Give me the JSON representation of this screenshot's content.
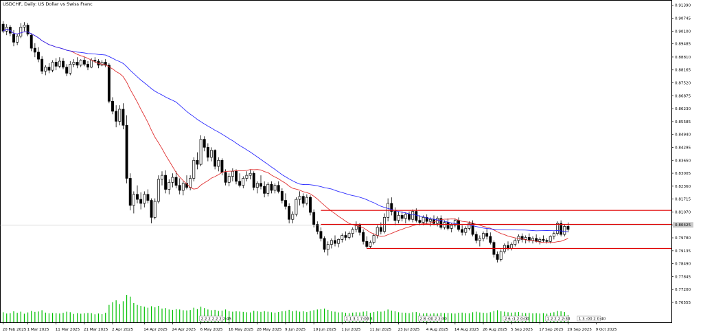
{
  "chart_data": {
    "type": "candlestick",
    "title": "USDCHF, Daily:  US Dollar vs Swiss Franc",
    "ylim": [
      0.758,
      0.9145
    ],
    "y_ticks": [
      "0.91390",
      "0.90745",
      "0.90100",
      "0.89485",
      "0.88810",
      "0.88165",
      "0.87520",
      "0.86875",
      "0.86230",
      "0.85585",
      "0.84940",
      "0.84295",
      "0.83650",
      "0.83005",
      "0.82360",
      "0.81715",
      "0.81070",
      "0.80425",
      "0.79780",
      "0.79135",
      "0.78490",
      "0.77845",
      "0.77200",
      "0.76555"
    ],
    "current_price_label": "0.80425",
    "x_ticks": [
      {
        "i": 0,
        "label": "20 Feb 2025"
      },
      {
        "i": 7,
        "label": "1 Mar 2025"
      },
      {
        "i": 15,
        "label": "11 Mar 2025"
      },
      {
        "i": 23,
        "label": "21 Mar 2025"
      },
      {
        "i": 31,
        "label": "2 Apr 2025"
      },
      {
        "i": 40,
        "label": "14 Apr 2025"
      },
      {
        "i": 48,
        "label": "24 Apr 2025"
      },
      {
        "i": 56,
        "label": "6 May 2025"
      },
      {
        "i": 64,
        "label": "16 May 2025"
      },
      {
        "i": 72,
        "label": "28 May 2025"
      },
      {
        "i": 80,
        "label": "9 Jun 2025"
      },
      {
        "i": 88,
        "label": "19 Jun 2025"
      },
      {
        "i": 96,
        "label": "1 Jul 2025"
      },
      {
        "i": 104,
        "label": "11 Jul 2025"
      },
      {
        "i": 112,
        "label": "23 Jul 2025"
      },
      {
        "i": 120,
        "label": "4 Aug 2025"
      },
      {
        "i": 128,
        "label": "14 Aug 2025"
      },
      {
        "i": 136,
        "label": "26 Aug 2025"
      },
      {
        "i": 144,
        "label": "5 Sep 2025"
      },
      {
        "i": 152,
        "label": "17 Sep 2025"
      },
      {
        "i": 160,
        "label": "29 Sep 2025"
      },
      {
        "i": 168,
        "label": "9 Oct 2025"
      }
    ],
    "horizontal_lines": [
      {
        "price": 0.8115,
        "from_i": 90,
        "color": "#e00000"
      },
      {
        "price": 0.8045,
        "from_i": 90,
        "color": "#e00000"
      },
      {
        "price": 0.7925,
        "from_i": 103,
        "color": "#e00000"
      }
    ],
    "ma_fast_color": "#e03030",
    "ma_slow_color": "#2a2aff",
    "volume_color": "#00c000",
    "session_markers": [
      {
        "i": 56,
        "label": "2 2 2 2 2 2 2:45"
      },
      {
        "i": 97,
        "label": "1 1 3 1 7:00 3"
      },
      {
        "i": 118,
        "label": "2 8 :00 2 2:30"
      },
      {
        "i": 142,
        "label": "2 6 :1 2 0:00"
      },
      {
        "i": 154,
        "label": "1 2 2 2 2:30"
      },
      {
        "i": 163,
        "label": "1 3 :00 2 0:40"
      }
    ],
    "candles": [
      [
        0.9045,
        0.906,
        0.9,
        0.901,
        55
      ],
      [
        0.901,
        0.9045,
        0.899,
        0.903,
        48
      ],
      [
        0.903,
        0.904,
        0.8985,
        0.9,
        50
      ],
      [
        0.8995,
        0.9015,
        0.8935,
        0.8955,
        60
      ],
      [
        0.8955,
        0.8995,
        0.894,
        0.8985,
        52
      ],
      [
        0.8985,
        0.905,
        0.8975,
        0.903,
        58
      ],
      [
        0.903,
        0.9055,
        0.901,
        0.904,
        47
      ],
      [
        0.904,
        0.905,
        0.8985,
        0.8995,
        54
      ],
      [
        0.899,
        0.9,
        0.891,
        0.8925,
        62
      ],
      [
        0.8925,
        0.895,
        0.888,
        0.8905,
        57
      ],
      [
        0.8905,
        0.893,
        0.8855,
        0.887,
        59
      ],
      [
        0.887,
        0.8885,
        0.8795,
        0.881,
        66
      ],
      [
        0.881,
        0.884,
        0.879,
        0.883,
        53
      ],
      [
        0.883,
        0.885,
        0.88,
        0.8815,
        49
      ],
      [
        0.8815,
        0.8865,
        0.8805,
        0.8855,
        51
      ],
      [
        0.8855,
        0.8875,
        0.8815,
        0.8835,
        50
      ],
      [
        0.8835,
        0.888,
        0.8825,
        0.886,
        48
      ],
      [
        0.886,
        0.8875,
        0.882,
        0.883,
        52
      ],
      [
        0.883,
        0.8845,
        0.8785,
        0.88,
        58
      ],
      [
        0.88,
        0.886,
        0.879,
        0.8845,
        55
      ],
      [
        0.8845,
        0.887,
        0.883,
        0.8855,
        46
      ],
      [
        0.8855,
        0.888,
        0.8825,
        0.884,
        50
      ],
      [
        0.884,
        0.887,
        0.883,
        0.8865,
        47
      ],
      [
        0.8865,
        0.888,
        0.8835,
        0.8845,
        49
      ],
      [
        0.8845,
        0.886,
        0.8815,
        0.883,
        51
      ],
      [
        0.883,
        0.8875,
        0.8825,
        0.8865,
        50
      ],
      [
        0.8865,
        0.888,
        0.885,
        0.886,
        44
      ],
      [
        0.886,
        0.887,
        0.8825,
        0.884,
        48
      ],
      [
        0.884,
        0.8865,
        0.8835,
        0.8855,
        45
      ],
      [
        0.8855,
        0.887,
        0.883,
        0.884,
        52
      ],
      [
        0.884,
        0.885,
        0.865,
        0.866,
        95
      ],
      [
        0.866,
        0.868,
        0.8595,
        0.861,
        110
      ],
      [
        0.861,
        0.864,
        0.853,
        0.856,
        120
      ],
      [
        0.856,
        0.864,
        0.854,
        0.862,
        100
      ],
      [
        0.862,
        0.865,
        0.852,
        0.854,
        115
      ],
      [
        0.854,
        0.859,
        0.825,
        0.8275,
        150
      ],
      [
        0.8275,
        0.83,
        0.8115,
        0.814,
        140
      ],
      [
        0.814,
        0.821,
        0.81,
        0.8195,
        105
      ],
      [
        0.8195,
        0.824,
        0.815,
        0.817,
        95
      ],
      [
        0.817,
        0.8205,
        0.812,
        0.815,
        90
      ],
      [
        0.815,
        0.821,
        0.813,
        0.8195,
        85
      ],
      [
        0.8195,
        0.822,
        0.815,
        0.8165,
        80
      ],
      [
        0.8165,
        0.8175,
        0.805,
        0.808,
        88
      ],
      [
        0.808,
        0.8175,
        0.807,
        0.816,
        82
      ],
      [
        0.816,
        0.829,
        0.815,
        0.827,
        90
      ],
      [
        0.827,
        0.831,
        0.824,
        0.829,
        75
      ],
      [
        0.829,
        0.8315,
        0.82,
        0.822,
        78
      ],
      [
        0.822,
        0.827,
        0.8195,
        0.8255,
        70
      ],
      [
        0.8255,
        0.83,
        0.823,
        0.828,
        68
      ],
      [
        0.828,
        0.831,
        0.8225,
        0.824,
        72
      ],
      [
        0.824,
        0.8275,
        0.8195,
        0.8215,
        70
      ],
      [
        0.8215,
        0.826,
        0.819,
        0.825,
        66
      ],
      [
        0.825,
        0.829,
        0.822,
        0.823,
        65
      ],
      [
        0.823,
        0.829,
        0.8215,
        0.8275,
        67
      ],
      [
        0.8275,
        0.838,
        0.826,
        0.8365,
        80
      ],
      [
        0.8365,
        0.8405,
        0.832,
        0.8345,
        72
      ],
      [
        0.8345,
        0.849,
        0.8335,
        0.847,
        85
      ],
      [
        0.847,
        0.8485,
        0.841,
        0.843,
        78
      ],
      [
        0.843,
        0.845,
        0.836,
        0.838,
        70
      ],
      [
        0.838,
        0.843,
        0.836,
        0.8415,
        66
      ],
      [
        0.8415,
        0.842,
        0.832,
        0.8335,
        68
      ],
      [
        0.8335,
        0.838,
        0.831,
        0.8365,
        62
      ],
      [
        0.8365,
        0.8375,
        0.829,
        0.8305,
        64
      ],
      [
        0.8305,
        0.832,
        0.824,
        0.8255,
        70
      ],
      [
        0.8255,
        0.83,
        0.8235,
        0.8285,
        61
      ],
      [
        0.8285,
        0.8325,
        0.826,
        0.831,
        58
      ],
      [
        0.831,
        0.832,
        0.8245,
        0.826,
        60
      ],
      [
        0.826,
        0.83,
        0.823,
        0.824,
        59
      ],
      [
        0.824,
        0.8285,
        0.8225,
        0.8275,
        57
      ],
      [
        0.8275,
        0.831,
        0.826,
        0.829,
        55
      ],
      [
        0.829,
        0.832,
        0.827,
        0.83,
        54
      ],
      [
        0.83,
        0.831,
        0.8215,
        0.823,
        63
      ],
      [
        0.823,
        0.826,
        0.82,
        0.825,
        60
      ],
      [
        0.825,
        0.829,
        0.822,
        0.8235,
        57
      ],
      [
        0.8235,
        0.826,
        0.818,
        0.82,
        61
      ],
      [
        0.82,
        0.8255,
        0.8185,
        0.8245,
        58
      ],
      [
        0.8245,
        0.826,
        0.82,
        0.8215,
        55
      ],
      [
        0.8215,
        0.825,
        0.82,
        0.824,
        53
      ],
      [
        0.824,
        0.826,
        0.82,
        0.821,
        56
      ],
      [
        0.821,
        0.8225,
        0.815,
        0.8165,
        60
      ],
      [
        0.8165,
        0.82,
        0.812,
        0.8135,
        62
      ],
      [
        0.8135,
        0.815,
        0.805,
        0.807,
        68
      ],
      [
        0.807,
        0.811,
        0.805,
        0.8095,
        60
      ],
      [
        0.8095,
        0.818,
        0.8085,
        0.817,
        64
      ],
      [
        0.817,
        0.821,
        0.814,
        0.8185,
        58
      ],
      [
        0.8185,
        0.82,
        0.813,
        0.815,
        60
      ],
      [
        0.815,
        0.8195,
        0.814,
        0.818,
        56
      ],
      [
        0.818,
        0.819,
        0.809,
        0.8105,
        62
      ],
      [
        0.8105,
        0.812,
        0.803,
        0.8045,
        66
      ],
      [
        0.8045,
        0.806,
        0.7995,
        0.801,
        70
      ],
      [
        0.801,
        0.803,
        0.796,
        0.7975,
        72
      ],
      [
        0.7975,
        0.7985,
        0.7905,
        0.792,
        75
      ],
      [
        0.792,
        0.796,
        0.789,
        0.7945,
        68
      ],
      [
        0.7945,
        0.7975,
        0.7925,
        0.7965,
        60
      ],
      [
        0.7965,
        0.799,
        0.7935,
        0.795,
        58
      ],
      [
        0.795,
        0.7975,
        0.793,
        0.797,
        54
      ],
      [
        0.797,
        0.8,
        0.7955,
        0.799,
        55
      ],
      [
        0.799,
        0.801,
        0.7965,
        0.798,
        52
      ],
      [
        0.798,
        0.801,
        0.797,
        0.8,
        50
      ],
      [
        0.8,
        0.803,
        0.798,
        0.802,
        53
      ],
      [
        0.802,
        0.806,
        0.8005,
        0.804,
        55
      ],
      [
        0.804,
        0.805,
        0.799,
        0.8005,
        54
      ],
      [
        0.8005,
        0.802,
        0.7945,
        0.796,
        58
      ],
      [
        0.796,
        0.7985,
        0.7925,
        0.7935,
        60
      ],
      [
        0.7935,
        0.7965,
        0.7925,
        0.7955,
        52
      ],
      [
        0.7955,
        0.8,
        0.7945,
        0.799,
        56
      ],
      [
        0.799,
        0.804,
        0.7975,
        0.803,
        60
      ],
      [
        0.803,
        0.8055,
        0.7995,
        0.801,
        58
      ],
      [
        0.801,
        0.81,
        0.8,
        0.808,
        62
      ],
      [
        0.808,
        0.8175,
        0.806,
        0.815,
        70
      ],
      [
        0.815,
        0.818,
        0.809,
        0.811,
        64
      ],
      [
        0.811,
        0.813,
        0.804,
        0.8065,
        60
      ],
      [
        0.8065,
        0.811,
        0.805,
        0.809,
        55
      ],
      [
        0.809,
        0.811,
        0.806,
        0.8075,
        53
      ],
      [
        0.8075,
        0.8105,
        0.805,
        0.8095,
        52
      ],
      [
        0.8095,
        0.811,
        0.806,
        0.807,
        50
      ],
      [
        0.807,
        0.812,
        0.8055,
        0.811,
        55
      ],
      [
        0.811,
        0.8125,
        0.8055,
        0.8065,
        56
      ],
      [
        0.8065,
        0.809,
        0.804,
        0.8055,
        50
      ],
      [
        0.8055,
        0.809,
        0.804,
        0.808,
        48
      ],
      [
        0.808,
        0.8095,
        0.8045,
        0.806,
        50
      ],
      [
        0.806,
        0.808,
        0.8035,
        0.807,
        47
      ],
      [
        0.807,
        0.809,
        0.804,
        0.805,
        49
      ],
      [
        0.805,
        0.8085,
        0.8035,
        0.8075,
        48
      ],
      [
        0.8075,
        0.809,
        0.802,
        0.803,
        52
      ],
      [
        0.803,
        0.8065,
        0.802,
        0.8055,
        50
      ],
      [
        0.8055,
        0.8075,
        0.8015,
        0.8025,
        51
      ],
      [
        0.8025,
        0.805,
        0.8005,
        0.804,
        49
      ],
      [
        0.804,
        0.8075,
        0.803,
        0.8065,
        48
      ],
      [
        0.8065,
        0.808,
        0.801,
        0.802,
        52
      ],
      [
        0.802,
        0.804,
        0.799,
        0.8005,
        53
      ],
      [
        0.8005,
        0.8035,
        0.799,
        0.8025,
        50
      ],
      [
        0.8025,
        0.806,
        0.8015,
        0.805,
        49
      ],
      [
        0.805,
        0.8065,
        0.7985,
        0.7995,
        55
      ],
      [
        0.7995,
        0.801,
        0.795,
        0.7965,
        58
      ],
      [
        0.7965,
        0.799,
        0.7935,
        0.7975,
        54
      ],
      [
        0.7975,
        0.801,
        0.796,
        0.8,
        52
      ],
      [
        0.8,
        0.8025,
        0.797,
        0.7985,
        51
      ],
      [
        0.7985,
        0.8005,
        0.7945,
        0.7955,
        55
      ],
      [
        0.7955,
        0.7965,
        0.788,
        0.7895,
        62
      ],
      [
        0.7895,
        0.791,
        0.7855,
        0.787,
        66
      ],
      [
        0.787,
        0.792,
        0.786,
        0.791,
        60
      ],
      [
        0.791,
        0.795,
        0.79,
        0.794,
        58
      ],
      [
        0.794,
        0.796,
        0.7915,
        0.7925,
        55
      ],
      [
        0.7925,
        0.7955,
        0.7915,
        0.7945,
        53
      ],
      [
        0.7945,
        0.7975,
        0.7935,
        0.7965,
        55
      ],
      [
        0.7965,
        0.7995,
        0.795,
        0.7985,
        56
      ],
      [
        0.7985,
        0.8,
        0.7955,
        0.797,
        52
      ],
      [
        0.797,
        0.799,
        0.795,
        0.798,
        50
      ],
      [
        0.798,
        0.8,
        0.7955,
        0.7965,
        51
      ],
      [
        0.7965,
        0.7985,
        0.795,
        0.7975,
        49
      ],
      [
        0.7975,
        0.7995,
        0.7955,
        0.796,
        50
      ],
      [
        0.796,
        0.798,
        0.7945,
        0.797,
        48
      ],
      [
        0.797,
        0.799,
        0.7955,
        0.7965,
        50
      ],
      [
        0.7965,
        0.7975,
        0.795,
        0.796,
        47
      ],
      [
        0.796,
        0.799,
        0.795,
        0.7985,
        52
      ],
      [
        0.7985,
        0.801,
        0.797,
        0.8,
        55
      ],
      [
        0.8,
        0.806,
        0.799,
        0.805,
        62
      ],
      [
        0.805,
        0.8065,
        0.7985,
        0.7995,
        60
      ],
      [
        0.7995,
        0.8045,
        0.7985,
        0.8035,
        56
      ],
      [
        0.8035,
        0.8055,
        0.8005,
        0.802,
        40
      ]
    ]
  }
}
